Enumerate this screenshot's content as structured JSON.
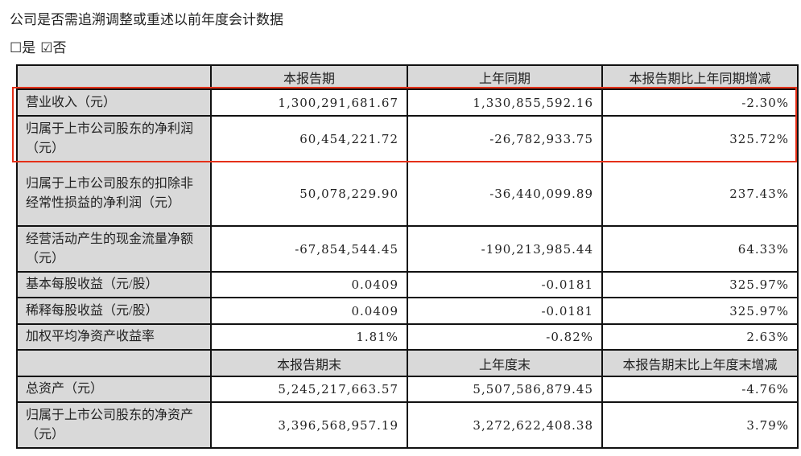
{
  "title": "公司是否需追溯调整或重述以前年度会计数据",
  "choice": {
    "yes": "☐是",
    "no": "☑否"
  },
  "header1": [
    "",
    "本报告期",
    "上年同期",
    "本报告期比上年同期增减"
  ],
  "rows1": [
    [
      "营业收入（元）",
      "1,300,291,681.67",
      "1,330,855,592.16",
      "-2.30%"
    ],
    [
      "归属于上市公司股东的净利润（元）",
      "60,454,221.72",
      "-26,782,933.75",
      "325.72%"
    ],
    [
      "归属于上市公司股东的扣除非经常性损益的净利润（元）",
      "50,078,229.90",
      "-36,440,099.89",
      "237.43%"
    ],
    [
      "经营活动产生的现金流量净额（元）",
      "-67,854,544.45",
      "-190,213,985.44",
      "64.33%"
    ],
    [
      "基本每股收益（元/股）",
      "0.0409",
      "-0.0181",
      "325.97%"
    ],
    [
      "稀释每股收益（元/股）",
      "0.0409",
      "-0.0181",
      "325.97%"
    ],
    [
      "加权平均净资产收益率",
      "1.81%",
      "-0.82%",
      "2.63%"
    ]
  ],
  "header2": [
    "",
    "本报告期末",
    "上年度末",
    "本报告期末比上年度末增减"
  ],
  "rows2": [
    [
      "总资产（元）",
      "5,245,217,663.57",
      "5,507,586,879.45",
      "-4.76%"
    ],
    [
      "归属于上市公司股东的净资产（元）",
      "3,396,568,957.19",
      "3,272,622,408.38",
      "3.79%"
    ]
  ],
  "highlight_color": "#e53018"
}
